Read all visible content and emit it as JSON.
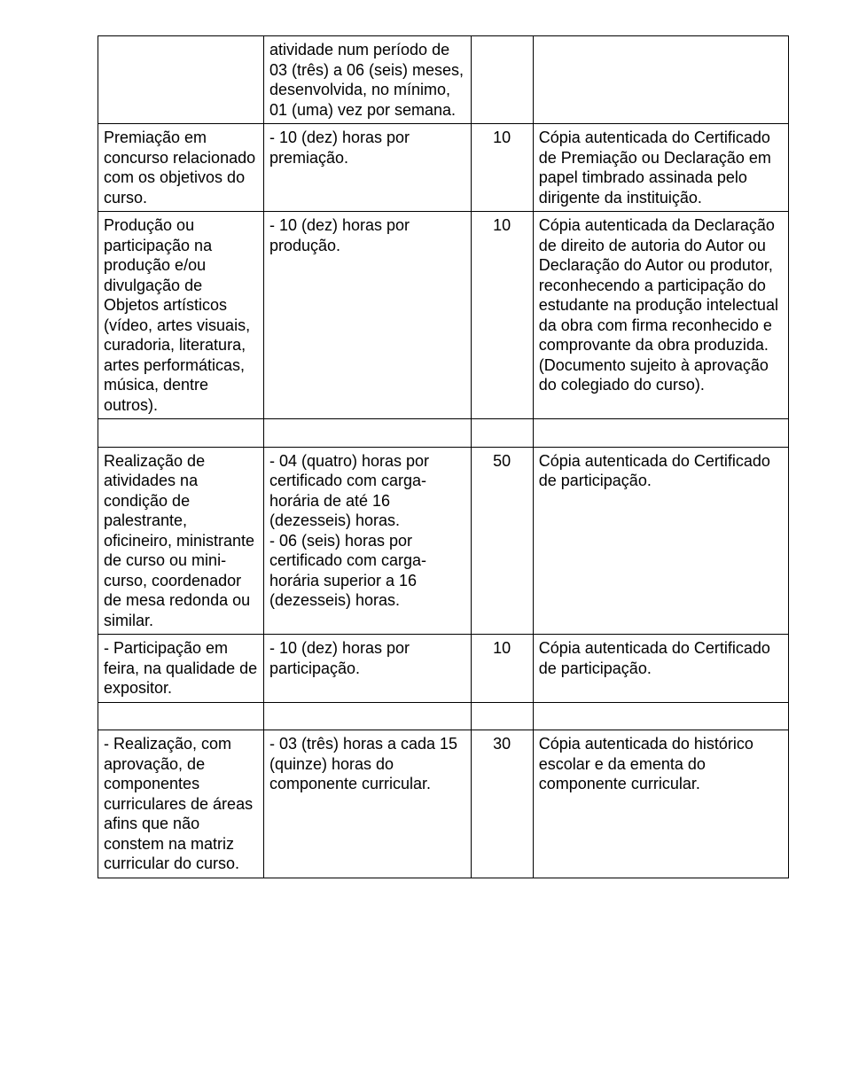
{
  "table": {
    "colors": {
      "border": "#000000",
      "text": "#000000",
      "background": "#ffffff"
    },
    "font_size_pt": 14,
    "column_widths_pct": [
      24,
      30,
      9,
      37
    ],
    "rows": [
      {
        "c1": "",
        "c2": "atividade num período de 03 (três) a 06 (seis) meses, desenvolvida, no mínimo, 01 (uma)  vez por semana.",
        "c3": "",
        "c4": ""
      },
      {
        "c1": "Premiação em concurso relacionado com os objetivos do curso.",
        "c2": "- 10 (dez) horas por premiação.",
        "c3": "10",
        "c4": "Cópia autenticada do Certificado de Premiação ou Declaração em papel timbrado assinada pelo dirigente da instituição."
      },
      {
        "c1": "Produção ou participação na produção e/ou divulgação de Objetos artísticos (vídeo, artes visuais, curadoria, literatura, artes performáticas, música, dentre outros).",
        "c2": "- 10 (dez) horas por produção.",
        "c3": "10",
        "c4": "Cópia autenticada da Declaração de direito de autoria do Autor ou Declaração do Autor ou produtor, reconhecendo a participação do estudante na produção intelectual da obra com firma reconhecido e comprovante da obra produzida.\n(Documento sujeito à aprovação do colegiado do curso)."
      },
      {
        "c1": "Realização de atividades na condição de palestrante, oficineiro, ministrante de curso ou mini-curso, coordenador de mesa redonda ou similar.",
        "c2": "- 04 (quatro) horas por certificado com carga-horária de até 16 (dezesseis) horas.\n- 06 (seis) horas por certificado com carga-horária superior a 16 (dezesseis) horas.",
        "c3": "50",
        "c4": "Cópia autenticada do Certificado de participação."
      },
      {
        "c1": "- Participação em feira, na qualidade de expositor.",
        "c2": "- 10 (dez) horas por participação.",
        "c3": "10",
        "c4": "Cópia autenticada do Certificado de participação."
      },
      {
        "c1": "- Realização, com aprovação, de componentes curriculares de áreas afins que não constem na matriz curricular do curso.",
        "c2": "- 03 (três) horas a cada 15 (quinze) horas do componente curricular.",
        "c3": "30",
        "c4": "Cópia autenticada do histórico escolar e da ementa do componente curricular."
      }
    ]
  }
}
